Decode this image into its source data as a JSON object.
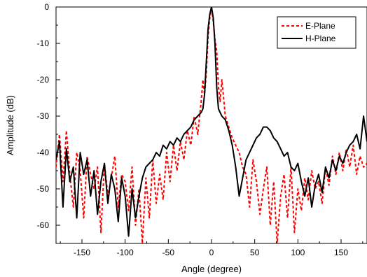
{
  "chart_data": {
    "type": "line",
    "title": "",
    "xlabel": "Angle (degree)",
    "ylabel": "Amplitude (dB)",
    "xlim": [
      -180,
      180
    ],
    "ylim": [
      -65,
      0
    ],
    "x_ticks": [
      -150,
      -100,
      -50,
      0,
      50,
      100,
      150
    ],
    "y_ticks": [
      0,
      -10,
      -20,
      -30,
      -40,
      -50,
      -60
    ],
    "grid": false,
    "legend_position": "top-right",
    "series": [
      {
        "name": "E-Plane",
        "color": "#ff0000",
        "line_style": "dashed",
        "x": [
          -180,
          -176,
          -172,
          -168,
          -164,
          -160,
          -156,
          -152,
          -148,
          -144,
          -140,
          -136,
          -132,
          -128,
          -124,
          -120,
          -116,
          -112,
          -108,
          -104,
          -100,
          -96,
          -92,
          -88,
          -84,
          -80,
          -76,
          -72,
          -68,
          -64,
          -60,
          -56,
          -52,
          -48,
          -44,
          -40,
          -36,
          -32,
          -28,
          -24,
          -20,
          -16,
          -12,
          -10,
          -8,
          -6,
          -4,
          -2,
          0,
          2,
          4,
          6,
          8,
          10,
          12,
          16,
          20,
          24,
          28,
          32,
          36,
          40,
          44,
          48,
          52,
          56,
          60,
          64,
          68,
          72,
          76,
          80,
          84,
          88,
          92,
          96,
          100,
          104,
          108,
          112,
          116,
          120,
          124,
          128,
          132,
          136,
          140,
          144,
          148,
          152,
          156,
          160,
          164,
          168,
          172,
          176,
          180
        ],
        "y": [
          -44,
          -35,
          -48,
          -34,
          -46,
          -55,
          -40,
          -45,
          -58,
          -41,
          -46,
          -50,
          -44,
          -62,
          -43,
          -52,
          -47,
          -41,
          -55,
          -46,
          -48,
          -56,
          -44,
          -60,
          -50,
          -65,
          -47,
          -58,
          -42,
          -54,
          -46,
          -53,
          -40,
          -48,
          -38,
          -45,
          -37,
          -42,
          -34,
          -38,
          -30,
          -35,
          -26,
          -20,
          -24,
          -18,
          -8,
          -3,
          0,
          -4,
          -9,
          -12,
          -22,
          -26,
          -20,
          -30,
          -33,
          -36,
          -38,
          -40,
          -44,
          -46,
          -55,
          -42,
          -48,
          -57,
          -50,
          -44,
          -60,
          -48,
          -65,
          -52,
          -46,
          -58,
          -44,
          -62,
          -50,
          -56,
          -47,
          -53,
          -45,
          -50,
          -48,
          -54,
          -44,
          -49,
          -41,
          -46,
          -40,
          -45,
          -39,
          -44,
          -38,
          -46,
          -41,
          -44,
          -43
        ]
      },
      {
        "name": "H-Plane",
        "color": "#000000",
        "line_style": "solid",
        "x": [
          -180,
          -176,
          -172,
          -168,
          -164,
          -160,
          -156,
          -152,
          -148,
          -144,
          -140,
          -136,
          -132,
          -128,
          -124,
          -120,
          -116,
          -112,
          -108,
          -104,
          -100,
          -96,
          -92,
          -88,
          -84,
          -80,
          -76,
          -72,
          -68,
          -64,
          -60,
          -56,
          -52,
          -48,
          -44,
          -40,
          -36,
          -32,
          -28,
          -24,
          -20,
          -16,
          -12,
          -10,
          -8,
          -6,
          -4,
          -2,
          0,
          2,
          4,
          6,
          8,
          10,
          12,
          16,
          20,
          24,
          28,
          32,
          36,
          40,
          44,
          48,
          52,
          56,
          60,
          64,
          68,
          72,
          76,
          80,
          84,
          88,
          92,
          96,
          100,
          104,
          108,
          112,
          116,
          120,
          124,
          128,
          132,
          136,
          140,
          144,
          148,
          152,
          156,
          160,
          164,
          168,
          172,
          176,
          180
        ],
        "y": [
          -42,
          -37,
          -55,
          -39,
          -48,
          -44,
          -58,
          -40,
          -46,
          -42,
          -52,
          -45,
          -57,
          -48,
          -43,
          -54,
          -46,
          -50,
          -59,
          -47,
          -52,
          -63,
          -50,
          -58,
          -52,
          -47,
          -44,
          -43,
          -42,
          -40,
          -41,
          -38,
          -39,
          -37,
          -38,
          -36,
          -37,
          -35,
          -34,
          -33,
          -31,
          -30,
          -29,
          -28,
          -24,
          -15,
          -6,
          -2,
          0,
          -3,
          -10,
          -22,
          -28,
          -29,
          -30,
          -31,
          -34,
          -38,
          -44,
          -52,
          -47,
          -42,
          -40,
          -38,
          -36,
          -35,
          -33,
          -33,
          -34,
          -36,
          -37,
          -39,
          -41,
          -40,
          -44,
          -45,
          -43,
          -48,
          -52,
          -47,
          -55,
          -49,
          -46,
          -51,
          -44,
          -47,
          -42,
          -45,
          -41,
          -43,
          -40,
          -38,
          -37,
          -35,
          -39,
          -30,
          -37
        ]
      }
    ]
  }
}
